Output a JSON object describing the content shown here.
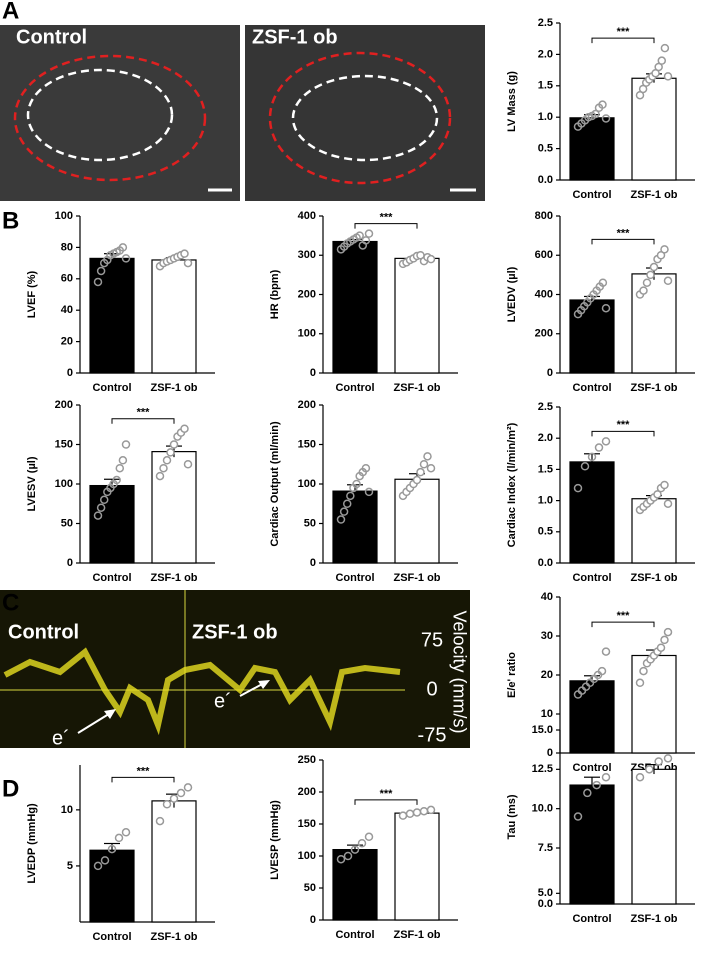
{
  "panels": [
    "A",
    "B",
    "C",
    "D"
  ],
  "echo_images": [
    {
      "label": "Control"
    },
    {
      "label": "ZSF-1 ob"
    }
  ],
  "doppler": {
    "labels": [
      "Control",
      "ZSF-1 ob"
    ],
    "axis_ticks": [
      "75",
      "0",
      "-75"
    ],
    "axis_label": "Velocity (mm/s)",
    "annotations": [
      "e´",
      "e´"
    ]
  },
  "chart_data": [
    {
      "type": "bar",
      "ylabel": "LV Mass (g)",
      "categories": [
        "Control",
        "ZSF-1 ob"
      ],
      "values": [
        0.99,
        1.62
      ],
      "errors": [
        0.05,
        0.07
      ],
      "colors": [
        "#000000",
        "#ffffff"
      ],
      "point_color": "#999999",
      "points": [
        [
          0.85,
          0.9,
          0.95,
          1.0,
          1.02,
          1.05,
          1.15,
          1.2,
          0.98
        ],
        [
          1.35,
          1.45,
          1.55,
          1.6,
          1.65,
          1.7,
          1.8,
          1.9,
          2.1,
          1.65
        ]
      ],
      "ylim": [
        0,
        2.5
      ],
      "yticks": [
        {
          "value": 0,
          "label": "0.0"
        },
        0.5,
        {
          "value": 1,
          "label": "1.0"
        },
        1.5,
        {
          "value": 2,
          "label": "2.0"
        },
        2.5
      ],
      "significance": "***"
    },
    {
      "type": "bar",
      "ylabel": "LVEF (%)",
      "categories": [
        "Control",
        "ZSF-1 ob"
      ],
      "values": [
        73,
        72
      ],
      "errors": [
        3,
        1.5
      ],
      "colors": [
        "#000000",
        "#ffffff"
      ],
      "point_color": "#999999",
      "points": [
        [
          58,
          65,
          70,
          72,
          75,
          76,
          77,
          78,
          80,
          73
        ],
        [
          68,
          70,
          71,
          72,
          73,
          74,
          75,
          76,
          70
        ]
      ],
      "ylim": [
        0,
        100
      ],
      "yticks": [
        0,
        20,
        40,
        60,
        80,
        100
      ]
    },
    {
      "type": "bar",
      "ylabel": "HR (bpm)",
      "categories": [
        "Control",
        "ZSF-1 ob"
      ],
      "values": [
        335,
        292
      ],
      "errors": [
        5,
        4
      ],
      "colors": [
        "#000000",
        "#ffffff"
      ],
      "point_color": "#999999",
      "points": [
        [
          315,
          322,
          330,
          335,
          340,
          345,
          350,
          325,
          338,
          355
        ],
        [
          278,
          282,
          288,
          292,
          298,
          300,
          285,
          295,
          290
        ]
      ],
      "ylim": [
        0,
        400
      ],
      "yticks": [
        0,
        100,
        200,
        300,
        400
      ],
      "significance": "***"
    },
    {
      "type": "bar",
      "ylabel": "LVEDV (µl)",
      "categories": [
        "Control",
        "ZSF-1 ob"
      ],
      "values": [
        372,
        505
      ],
      "errors": [
        18,
        30
      ],
      "colors": [
        "#000000",
        "#ffffff"
      ],
      "point_color": "#999999",
      "points": [
        [
          300,
          320,
          340,
          360,
          380,
          400,
          420,
          440,
          460,
          330
        ],
        [
          400,
          420,
          460,
          500,
          540,
          580,
          600,
          630,
          470
        ]
      ],
      "ylim": [
        0,
        800
      ],
      "yticks": [
        0,
        200,
        400,
        600,
        800
      ],
      "significance": "***"
    },
    {
      "type": "bar",
      "ylabel": "LVESV (µl)",
      "categories": [
        "Control",
        "ZSF-1 ob"
      ],
      "values": [
        98,
        141
      ],
      "errors": [
        8,
        7
      ],
      "colors": [
        "#000000",
        "#ffffff"
      ],
      "point_color": "#999999",
      "points": [
        [
          60,
          70,
          80,
          90,
          95,
          100,
          105,
          120,
          130,
          150
        ],
        [
          110,
          120,
          130,
          140,
          150,
          160,
          165,
          170,
          125
        ]
      ],
      "ylim": [
        0,
        200
      ],
      "yticks": [
        0,
        50,
        100,
        150,
        200
      ],
      "significance": "***"
    },
    {
      "type": "bar",
      "ylabel": "Cardiac Output (ml/min)",
      "categories": [
        "Control",
        "ZSF-1 ob"
      ],
      "values": [
        91,
        106
      ],
      "errors": [
        8,
        7
      ],
      "colors": [
        "#000000",
        "#ffffff"
      ],
      "point_color": "#999999",
      "points": [
        [
          55,
          65,
          75,
          85,
          95,
          100,
          110,
          115,
          120,
          90
        ],
        [
          85,
          90,
          95,
          100,
          105,
          115,
          125,
          135,
          120
        ]
      ],
      "ylim": [
        0,
        200
      ],
      "yticks": [
        0,
        50,
        100,
        150,
        200
      ]
    },
    {
      "type": "bar",
      "ylabel": "Cardiac Index (l/min/m²)",
      "categories": [
        "Control",
        "ZSF-1 ob"
      ],
      "values": [
        1.62,
        1.03
      ],
      "errors": [
        0.13,
        0.05
      ],
      "colors": [
        "#000000",
        "#ffffff"
      ],
      "point_color": "#999999",
      "points": [
        [
          1.2,
          1.55,
          1.7,
          1.85,
          1.95
        ],
        [
          0.85,
          0.9,
          0.95,
          1.0,
          1.05,
          1.1,
          1.2,
          1.25,
          0.95
        ]
      ],
      "ylim": [
        0,
        2.5
      ],
      "yticks": [
        {
          "value": 0,
          "label": "0.0"
        },
        0.5,
        {
          "value": 1,
          "label": "1.0"
        },
        1.5,
        {
          "value": 2,
          "label": "2.0"
        },
        2.5
      ],
      "significance": "***"
    },
    {
      "type": "bar",
      "ylabel": "E/e' ratio",
      "categories": [
        "Control",
        "ZSF-1 ob"
      ],
      "values": [
        18.5,
        25
      ],
      "errors": [
        1.3,
        1.4
      ],
      "colors": [
        "#000000",
        "#ffffff"
      ],
      "point_color": "#999999",
      "points": [
        [
          15,
          16,
          17,
          18,
          19,
          20,
          21,
          26
        ],
        [
          18,
          21,
          23,
          24,
          25,
          26,
          27,
          29,
          31
        ]
      ],
      "ylim": [
        0,
        40
      ],
      "yticks": [
        0,
        10,
        20,
        30,
        40
      ],
      "significance": "***"
    },
    {
      "type": "bar",
      "ylabel": "LVEDP (mmHg)",
      "categories": [
        "Control",
        "ZSF-1 ob"
      ],
      "values": [
        6.4,
        10.8
      ],
      "errors": [
        0.6,
        0.6
      ],
      "colors": [
        "#000000",
        "#ffffff"
      ],
      "point_color": "#999999",
      "points": [
        [
          5,
          5.5,
          6.5,
          7.5,
          8
        ],
        [
          9,
          10.5,
          11,
          11.5,
          12
        ]
      ],
      "ylim": [
        0,
        14
      ],
      "yticks": [
        5,
        10
      ],
      "significance": "***"
    },
    {
      "type": "bar",
      "ylabel": "LVESP (mmHg)",
      "categories": [
        "Control",
        "ZSF-1 ob"
      ],
      "values": [
        110,
        167
      ],
      "errors": [
        7,
        2
      ],
      "colors": [
        "#000000",
        "#ffffff"
      ],
      "point_color": "#999999",
      "points": [
        [
          95,
          100,
          110,
          120,
          130
        ],
        [
          163,
          166,
          168,
          170,
          172
        ]
      ],
      "ylim": [
        0,
        250
      ],
      "yticks": [
        0,
        50,
        100,
        150,
        200,
        250
      ],
      "significance": "***"
    },
    {
      "type": "bar",
      "ylabel": "Tau (ms)",
      "categories": [
        "Control",
        "ZSF-1 ob"
      ],
      "values": [
        11.5,
        12.5
      ],
      "errors": [
        0.5,
        0.3
      ],
      "colors": [
        "#000000",
        "#ffffff"
      ],
      "point_color": "#999999",
      "points": [
        [
          9.5,
          11,
          11.5,
          12
        ],
        [
          12,
          12.5,
          13,
          13.2
        ]
      ],
      "ylim": [
        0,
        15
      ],
      "ybreak": 7.5,
      "yticks": [
        {
          "value": 0,
          "label": "0.0"
        },
        {
          "value": 5,
          "label": "5.0"
        },
        7.5,
        {
          "value": 10,
          "label": "10.0"
        },
        12.5,
        {
          "value": 15,
          "label": "15.0"
        }
      ]
    }
  ]
}
